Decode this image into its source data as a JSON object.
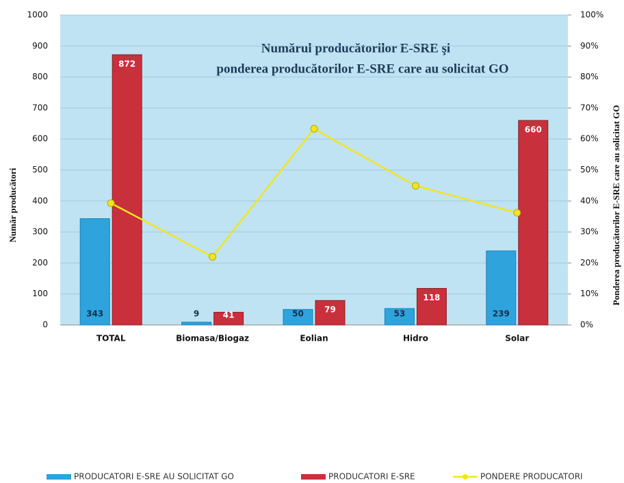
{
  "chart_data": {
    "type": "bar-line",
    "title": [
      "Numărul producătorilor E-SRE şi",
      "ponderea producătorilor E-SRE  care au solicitat GO"
    ],
    "y_label": "Număr producători",
    "y2_label": "Ponderea producătorilor E-SRE care au solicitat GO",
    "categories": [
      "TOTAL",
      "Biomasa/Biogaz",
      "Eolian",
      "Hidro",
      "Solar"
    ],
    "series": [
      {
        "name": "PRODUCATORI E-SRE AU SOLICITAT GO",
        "type": "bar",
        "color": "#2fa3dc",
        "values": [
          343,
          9,
          50,
          53,
          239
        ]
      },
      {
        "name": "PRODUCATORI E-SRE",
        "type": "bar",
        "color": "#c8303c",
        "values": [
          872,
          41,
          79,
          118,
          660
        ]
      },
      {
        "name": "PONDERE PRODUCATORI",
        "type": "line",
        "axis": "y2",
        "color": "#f2e421",
        "values": [
          39.3,
          22.0,
          63.3,
          44.9,
          36.2
        ]
      }
    ],
    "ylim": [
      0,
      1000
    ],
    "yticks": [
      0,
      100,
      200,
      300,
      400,
      500,
      600,
      700,
      800,
      900,
      1000
    ],
    "y2lim": [
      0,
      100
    ],
    "y2ticks": [
      {
        "value": 0,
        "label": "0%"
      },
      {
        "value": 10,
        "label": "10%"
      },
      {
        "value": 20,
        "label": "20%"
      },
      {
        "value": 30,
        "label": "30%"
      },
      {
        "value": 40,
        "label": "40%"
      },
      {
        "value": 50,
        "label": "50%"
      },
      {
        "value": 60,
        "label": "60%"
      },
      {
        "value": 70,
        "label": "70%"
      },
      {
        "value": 80,
        "label": "80%"
      },
      {
        "value": 90,
        "label": "90%"
      },
      {
        "value": 100,
        "label": "100%"
      }
    ],
    "grid": true,
    "legend": "bottom"
  }
}
